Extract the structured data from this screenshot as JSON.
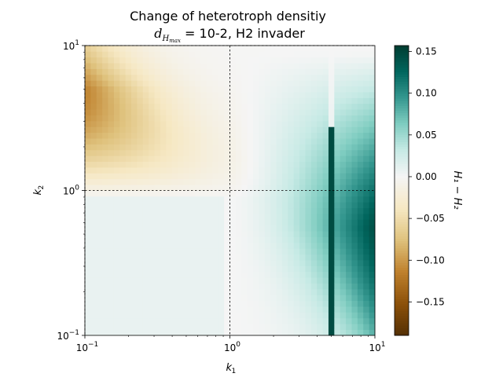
{
  "chart_data": {
    "type": "heatmap",
    "title": {
      "line1": "Change of heterotroph densitiy",
      "line2_math": "d",
      "line2_sub": "H",
      "line2_subsub": "max",
      "line2_rest": " = 10-2, H2 invader"
    },
    "xlabel": "k",
    "xlabel_sub": "1",
    "ylabel": "k",
    "ylabel_sub": "2",
    "x_scale": "log",
    "y_scale": "log",
    "xlim": [
      0.1,
      10
    ],
    "ylim": [
      0.1,
      10
    ],
    "x_ticks": [
      {
        "value": 0.1,
        "base": "10",
        "exp": "−1"
      },
      {
        "value": 1,
        "base": "10",
        "exp": "0"
      },
      {
        "value": 10,
        "base": "10",
        "exp": "1"
      }
    ],
    "y_ticks": [
      {
        "value": 0.1,
        "base": "10",
        "exp": "−1"
      },
      {
        "value": 1,
        "base": "10",
        "exp": "0"
      },
      {
        "value": 10,
        "base": "10",
        "exp": "1"
      }
    ],
    "reference_lines": {
      "x": 1,
      "y": 1,
      "style": "dashed"
    },
    "colormap": "BrBG",
    "colorbar": {
      "label": "H₁ − H₂",
      "range": [
        -0.19,
        0.157
      ],
      "ticks": [
        "0.15",
        "0.10",
        "0.05",
        "0.00",
        "−0.05",
        "−0.10",
        "−0.15"
      ],
      "tick_values": [
        0.15,
        0.1,
        0.05,
        0.0,
        -0.05,
        -0.1,
        -0.15
      ]
    },
    "grid_size": [
      50,
      50
    ],
    "colors": {
      "brown_dark": "#543005",
      "brown": "#8c510a",
      "tan": "#bf812d",
      "light_tan": "#dfc27d",
      "cream": "#f6e8c3",
      "neutral": "#f5f5f5",
      "light_teal": "#c7eae5",
      "teal": "#80cdc1",
      "mid_teal": "#35978f",
      "dark_teal": "#01665e",
      "darkest_teal": "#003c30"
    }
  }
}
